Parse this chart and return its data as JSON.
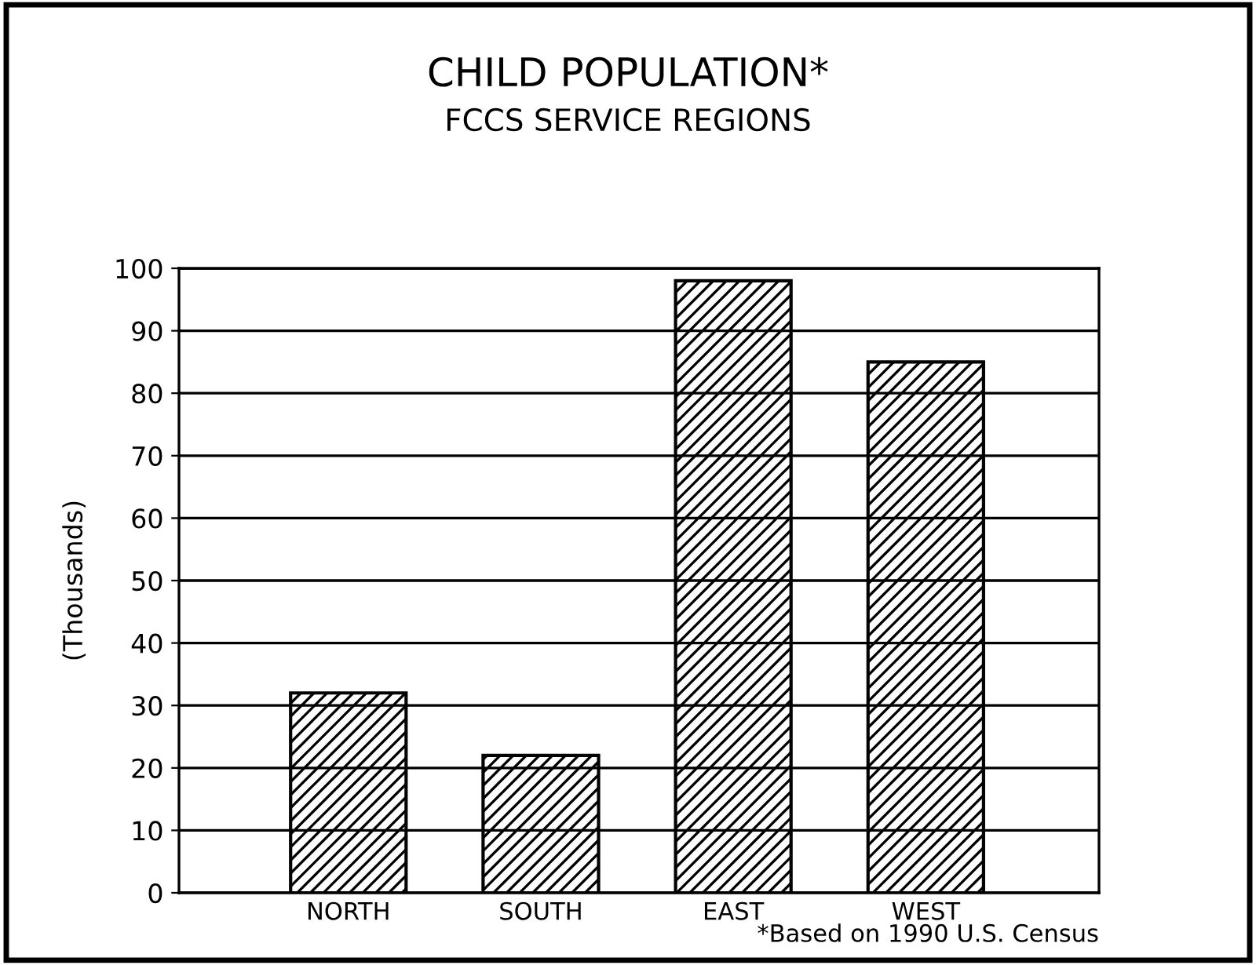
{
  "chart_data": {
    "type": "bar",
    "title": "CHILD POPULATION*",
    "subtitle": "FCCS SERVICE REGIONS",
    "ylabel": "(Thousands)",
    "categories": [
      "NORTH",
      "SOUTH",
      "EAST",
      "WEST"
    ],
    "values": [
      32,
      22,
      98,
      85
    ],
    "color": "#000000",
    "ylim": [
      0,
      100
    ],
    "yticks": [
      0,
      10,
      20,
      30,
      40,
      50,
      60,
      70,
      80,
      90,
      100
    ],
    "grid": "y",
    "annotations": [
      "*Based on 1990 U.S. Census"
    ]
  }
}
